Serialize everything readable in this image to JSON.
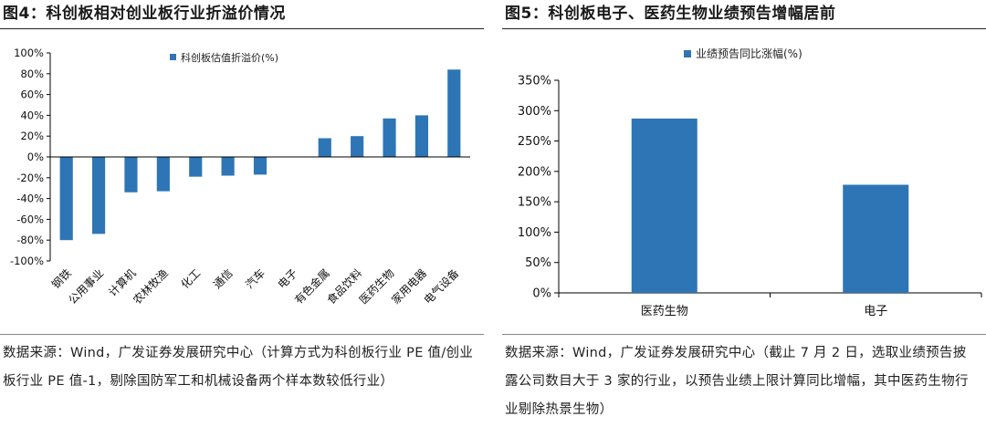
{
  "charts": [
    {
      "figure_title": "图4：科创板相对创业板行业折溢价情况",
      "source_note": "数据来源：Wind，广发证券发展研究中心（计算方式为科创板行业 PE 值/创业板行业 PE 值-1，剔除国防军工和机械设备两个样本数较低行业）",
      "colors": {
        "bar": "#2e75b6",
        "axis": "#000000"
      }
    },
    {
      "figure_title": "图5：科创板电子、医药生物业绩预告增幅居前",
      "source_note": "数据来源：Wind，广发证券发展研究中心（截止 7 月 2 日，选取业绩预告披露公司数目大于 3 家的行业，以预告业绩上限计算同比增幅，其中医药生物行业剔除热景生物）",
      "colors": {
        "bar": "#2e75b6",
        "axis": "#000000"
      }
    }
  ],
  "chart_data": [
    {
      "type": "bar",
      "title": "图4：科创板相对创业板行业折溢价情况",
      "legend": "科创板估值折溢价(%)",
      "legend_position": "top-center",
      "categories": [
        "钢铁",
        "公用事业",
        "计算机",
        "农林牧渔",
        "化工",
        "通信",
        "汽车",
        "电子",
        "有色金属",
        "食品饮料",
        "医药生物",
        "家用电器",
        "电气设备"
      ],
      "values": [
        -80,
        -74,
        -34,
        -33,
        -19,
        -18,
        -17,
        0,
        18,
        20,
        37,
        40,
        84
      ],
      "ylim": [
        -100,
        100
      ],
      "yticks": [
        100,
        80,
        60,
        40,
        20,
        0,
        -20,
        -40,
        -60,
        -80,
        -100
      ],
      "ytick_format": "percent",
      "xlabel": "",
      "ylabel": "",
      "grid": false
    },
    {
      "type": "bar",
      "title": "图5：科创板电子、医药生物业绩预告增幅居前",
      "legend": "业绩预告同比涨幅(%)",
      "legend_position": "top-center",
      "categories": [
        "医药生物",
        "电子"
      ],
      "values": [
        287,
        178
      ],
      "ylim": [
        0,
        350
      ],
      "yticks": [
        350,
        300,
        250,
        200,
        150,
        100,
        50,
        0
      ],
      "ytick_format": "percent",
      "xlabel": "",
      "ylabel": "",
      "grid": false
    }
  ]
}
